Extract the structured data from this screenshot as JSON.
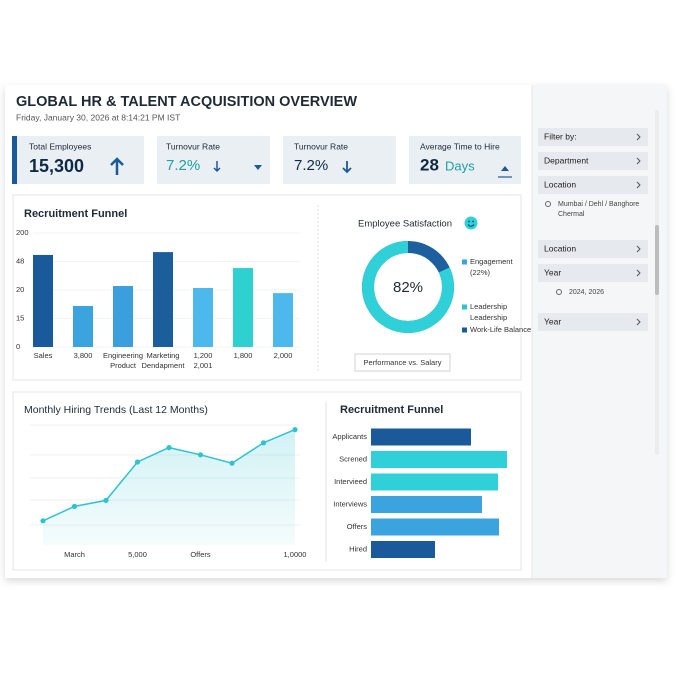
{
  "header": {
    "title": "GLOBAL HR & TALENT ACQUISITION OVERVIEW",
    "timestamp": "Friday, January 30, 2026 at 8:14:21 PM IST"
  },
  "kpis": [
    {
      "label": "Total Employees",
      "value": "15,300"
    },
    {
      "label": "Turnovur Rate",
      "value": "7.2%"
    },
    {
      "label": "Turnovur Rate",
      "value": "7.2%"
    },
    {
      "label": "Average Time to Hire",
      "value": "28",
      "unit": "Days"
    }
  ],
  "sidebar": {
    "items": [
      {
        "label": "Filter by:"
      },
      {
        "label": "Department"
      },
      {
        "label": "Location",
        "detail": [
          "Mumbai / Dehl / Banghore",
          "Chermal"
        ]
      },
      {
        "label": "Location"
      },
      {
        "label": "Year",
        "detail": [
          "2024, 2026"
        ]
      },
      {
        "label": "Year"
      }
    ]
  },
  "chart_data": [
    {
      "type": "bar",
      "title": "Recruitment Funnel",
      "categories": [
        "Sales",
        "3,800",
        "Engineering",
        "Marketing",
        "1,200",
        "1,800",
        "2,000"
      ],
      "category_sublabels": [
        null,
        null,
        "Product",
        "Dendapment",
        "2,001",
        null,
        null
      ],
      "values": [
        3.23,
        1.44,
        2.14,
        3.33,
        2.07,
        2.77,
        1.89
      ],
      "colors": [
        "#1a5a9a",
        "#3ba3de",
        "#3a9fdc",
        "#1c5d9c",
        "#4cb8ec",
        "#2fd0d0",
        "#4cb8ec"
      ],
      "ylim": [
        0,
        4
      ],
      "yticks": [
        0,
        {
          "value": 1,
          "label": "15"
        },
        {
          "value": 2,
          "label": "20"
        },
        {
          "value": 3,
          "label": "48"
        },
        {
          "value": 4,
          "label": "200"
        }
      ]
    },
    {
      "type": "donut",
      "title": "Employee Satisfaction",
      "values": [
        82
      ],
      "value_labels": [
        "82%"
      ],
      "ylim": [
        0,
        100
      ],
      "color": "#2fd0d8",
      "track_color": "#1d5f9f",
      "legend": [
        {
          "name": "Engagement",
          "detail": "(22%)",
          "color": "#3ba3de"
        },
        {
          "name": "Leadership",
          "detail": "Leadership",
          "color": "#2ec4cf"
        },
        {
          "name": "Work-Life Balance",
          "color": "#1a5a9a"
        }
      ],
      "button": "Performance vs. Salary"
    },
    {
      "type": "line",
      "title": "Monthly Hiring Trends (Last 12 Months)",
      "categories": [
        null,
        "March",
        null,
        "5,000",
        null,
        "Offers",
        null,
        null,
        "1,0000"
      ],
      "values": [
        16,
        28,
        33,
        65,
        77,
        71,
        64,
        81,
        92
      ],
      "ylim": [
        0,
        100
      ],
      "color": "#2fc3d0",
      "area": true
    },
    {
      "type": "hbar",
      "title": "Recruitment Funnel",
      "categories": [
        "Applicants",
        "Screned",
        "Intervieed",
        "Interviews",
        "Offers",
        "Hired"
      ],
      "values": [
        100,
        136,
        127,
        111,
        128,
        64
      ],
      "colors": [
        "#1a5a9a",
        "#2fd0d8",
        "#2fd0d8",
        "#3ba3de",
        "#3ba3de",
        "#1a5a9a"
      ],
      "xlim": [
        0,
        140
      ]
    }
  ]
}
